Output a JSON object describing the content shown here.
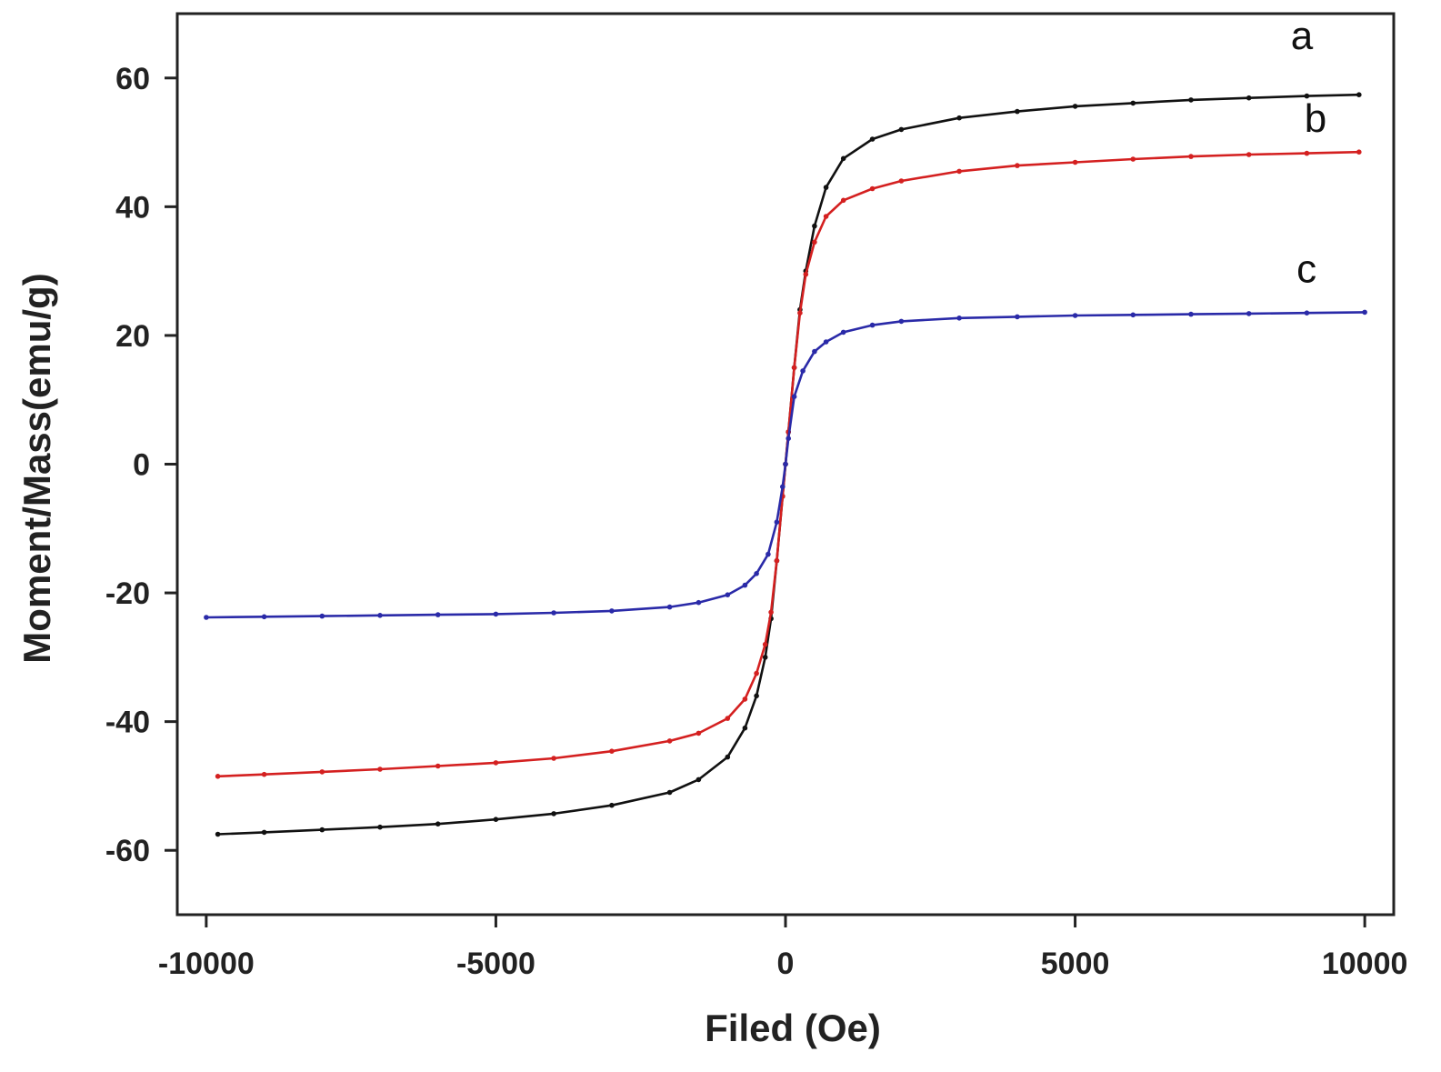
{
  "chart_data": {
    "type": "line",
    "title": "",
    "xlabel": "Filed (Oe)",
    "ylabel": "Moment/Mass(emu/g)",
    "xlim": [
      -10500,
      10500
    ],
    "ylim": [
      -70,
      70
    ],
    "xticks": [
      -10000,
      -5000,
      0,
      5000,
      10000
    ],
    "yticks": [
      -60,
      -40,
      -20,
      0,
      20,
      40,
      60
    ],
    "xtick_labels": [
      "-10000",
      "-5000",
      "0",
      "5000",
      "10000"
    ],
    "ytick_labels": [
      "-60",
      "-40",
      "-20",
      "0",
      "20",
      "40",
      "60"
    ],
    "grid": false,
    "series": [
      {
        "name": "a",
        "color": "#111111",
        "points": [
          [
            -9800,
            -57.5
          ],
          [
            -9000,
            -57.2
          ],
          [
            -8000,
            -56.8
          ],
          [
            -7000,
            -56.4
          ],
          [
            -6000,
            -55.9
          ],
          [
            -5000,
            -55.2
          ],
          [
            -4000,
            -54.3
          ],
          [
            -3000,
            -53.0
          ],
          [
            -2000,
            -51.0
          ],
          [
            -1500,
            -49.0
          ],
          [
            -1000,
            -45.5
          ],
          [
            -700,
            -41.0
          ],
          [
            -500,
            -36.0
          ],
          [
            -350,
            -30.0
          ],
          [
            -250,
            -24.0
          ],
          [
            -150,
            -15.0
          ],
          [
            -50,
            -5.0
          ],
          [
            0,
            0
          ],
          [
            50,
            5.0
          ],
          [
            150,
            15.0
          ],
          [
            250,
            24.0
          ],
          [
            350,
            30.0
          ],
          [
            500,
            37.0
          ],
          [
            700,
            43.0
          ],
          [
            1000,
            47.5
          ],
          [
            1500,
            50.5
          ],
          [
            2000,
            52.0
          ],
          [
            3000,
            53.8
          ],
          [
            4000,
            54.8
          ],
          [
            5000,
            55.6
          ],
          [
            6000,
            56.1
          ],
          [
            7000,
            56.6
          ],
          [
            8000,
            56.9
          ],
          [
            9000,
            57.2
          ],
          [
            9900,
            57.4
          ]
        ]
      },
      {
        "name": "b",
        "color": "#d42020",
        "points": [
          [
            -9800,
            -48.5
          ],
          [
            -9000,
            -48.2
          ],
          [
            -8000,
            -47.8
          ],
          [
            -7000,
            -47.4
          ],
          [
            -6000,
            -46.9
          ],
          [
            -5000,
            -46.4
          ],
          [
            -4000,
            -45.7
          ],
          [
            -3000,
            -44.6
          ],
          [
            -2000,
            -43.0
          ],
          [
            -1500,
            -41.8
          ],
          [
            -1000,
            -39.5
          ],
          [
            -700,
            -36.5
          ],
          [
            -500,
            -32.5
          ],
          [
            -350,
            -28.0
          ],
          [
            -250,
            -23.0
          ],
          [
            -150,
            -15.0
          ],
          [
            -50,
            -5.0
          ],
          [
            0,
            0
          ],
          [
            50,
            5.0
          ],
          [
            150,
            15.0
          ],
          [
            250,
            23.5
          ],
          [
            350,
            29.5
          ],
          [
            500,
            34.5
          ],
          [
            700,
            38.5
          ],
          [
            1000,
            41.0
          ],
          [
            1500,
            42.8
          ],
          [
            2000,
            44.0
          ],
          [
            3000,
            45.5
          ],
          [
            4000,
            46.4
          ],
          [
            5000,
            46.9
          ],
          [
            6000,
            47.4
          ],
          [
            7000,
            47.8
          ],
          [
            8000,
            48.1
          ],
          [
            9000,
            48.3
          ],
          [
            9900,
            48.5
          ]
        ]
      },
      {
        "name": "c",
        "color": "#2a2aa8",
        "points": [
          [
            -10000,
            -23.8
          ],
          [
            -9000,
            -23.7
          ],
          [
            -8000,
            -23.6
          ],
          [
            -7000,
            -23.5
          ],
          [
            -6000,
            -23.4
          ],
          [
            -5000,
            -23.3
          ],
          [
            -4000,
            -23.1
          ],
          [
            -3000,
            -22.8
          ],
          [
            -2000,
            -22.2
          ],
          [
            -1500,
            -21.5
          ],
          [
            -1000,
            -20.3
          ],
          [
            -700,
            -18.8
          ],
          [
            -500,
            -17.0
          ],
          [
            -300,
            -14.0
          ],
          [
            -150,
            -9.0
          ],
          [
            -50,
            -3.5
          ],
          [
            0,
            0
          ],
          [
            50,
            4.0
          ],
          [
            150,
            10.5
          ],
          [
            300,
            14.5
          ],
          [
            500,
            17.5
          ],
          [
            700,
            19.0
          ],
          [
            1000,
            20.5
          ],
          [
            1500,
            21.6
          ],
          [
            2000,
            22.2
          ],
          [
            3000,
            22.7
          ],
          [
            4000,
            22.9
          ],
          [
            5000,
            23.1
          ],
          [
            6000,
            23.2
          ],
          [
            7000,
            23.3
          ],
          [
            8000,
            23.4
          ],
          [
            9000,
            23.5
          ],
          [
            10000,
            23.6
          ]
        ]
      }
    ],
    "series_labels": [
      "a",
      "b",
      "c"
    ]
  }
}
